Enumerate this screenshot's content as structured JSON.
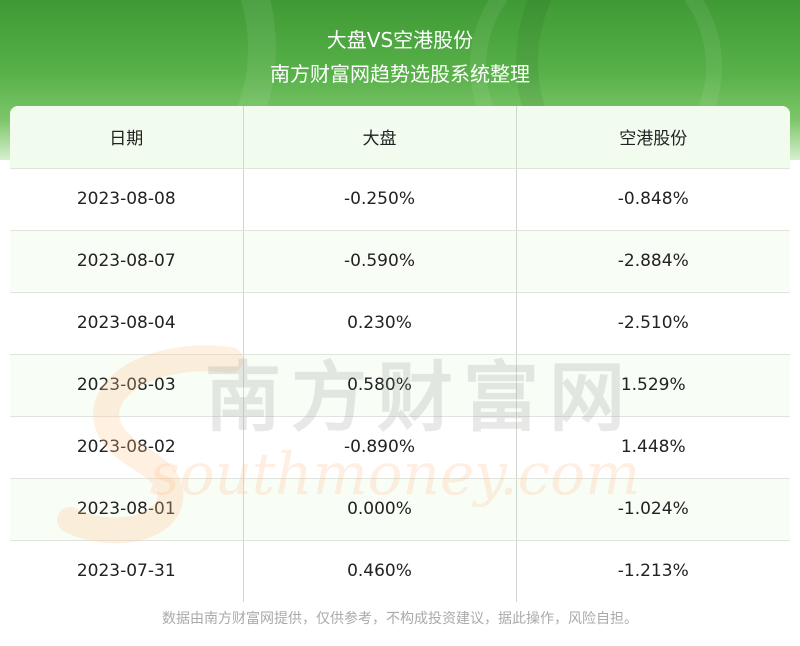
{
  "header": {
    "title": "大盘VS空港股份",
    "subtitle": "南方财富网趋势选股系统整理"
  },
  "table": {
    "columns": [
      "日期",
      "大盘",
      "空港股份"
    ],
    "rows": [
      [
        "2023-08-08",
        "-0.250%",
        "-0.848%"
      ],
      [
        "2023-08-07",
        "-0.590%",
        "-2.884%"
      ],
      [
        "2023-08-04",
        "0.230%",
        "-2.510%"
      ],
      [
        "2023-08-03",
        "0.580%",
        "1.529%"
      ],
      [
        "2023-08-02",
        "-0.890%",
        "1.448%"
      ],
      [
        "2023-08-01",
        "0.000%",
        "-1.024%"
      ],
      [
        "2023-07-31",
        "0.460%",
        "-1.213%"
      ]
    ]
  },
  "watermark": {
    "cn": "南方财富网",
    "en": "southmoney.com"
  },
  "footer": {
    "disclaimer": "数据由南方财富网提供，仅供参考，不构成投资建议，据此操作，风险自担。"
  },
  "colors": {
    "header_green": "#57b048",
    "text": "#222222",
    "footer_text": "#aaaaaa"
  }
}
